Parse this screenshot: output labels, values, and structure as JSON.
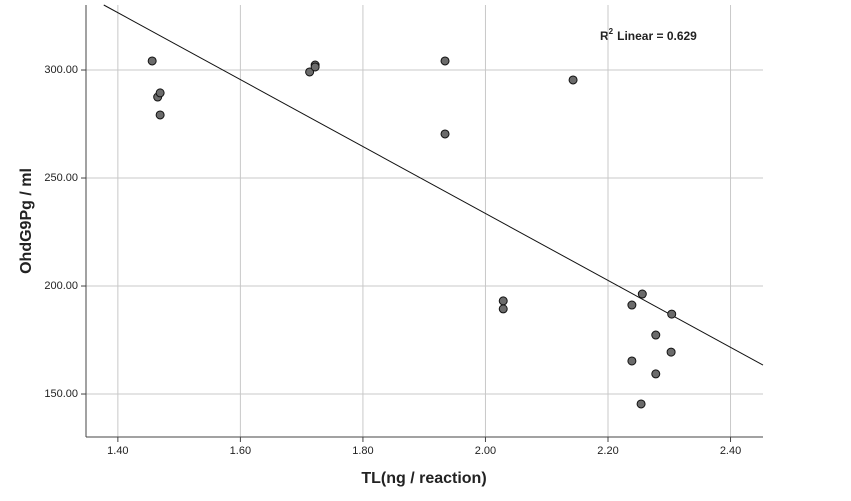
{
  "chart_data": {
    "type": "scatter",
    "x_label": "TL(ng / reaction)",
    "y_label": "OhdG9Pg / ml",
    "annotation": {
      "base": "R",
      "sup": "2",
      "text": "Linear = 0.629"
    },
    "series": [
      {
        "color": "#6b6b6b",
        "x": [
          1.456,
          1.465,
          1.469,
          1.469,
          1.713,
          1.722,
          1.722,
          1.934,
          1.934,
          2.143,
          2.029,
          2.029,
          2.256,
          2.239,
          2.304,
          2.278,
          2.239,
          2.303,
          2.278,
          2.254
        ],
        "values": [
          304.2,
          287.5,
          289.4,
          279.2,
          299.1,
          302.3,
          301.4,
          304.2,
          270.4,
          295.4,
          193.1,
          189.4,
          196.3,
          191.2,
          187.0,
          177.3,
          165.3,
          169.4,
          159.3,
          145.4
        ]
      }
    ],
    "fit_line": {
      "x": [
        1.377,
        2.453
      ],
      "values": [
        330.1,
        163.4
      ]
    },
    "xlim": [
      1.348,
      2.453
    ],
    "ylim": [
      130.1,
      330.1
    ],
    "xticks": [
      {
        "value": 1.4,
        "label": "1.40"
      },
      {
        "value": 1.6,
        "label": "1.60"
      },
      {
        "value": 1.8,
        "label": "1.80"
      },
      {
        "value": 2.0,
        "label": "2.00"
      },
      {
        "value": 2.2,
        "label": "2.20"
      },
      {
        "value": 2.4,
        "label": "2.40"
      }
    ],
    "yticks": [
      {
        "value": 150,
        "label": "150.00"
      },
      {
        "value": 200,
        "label": "200.00"
      },
      {
        "value": 250,
        "label": "250.00"
      },
      {
        "value": 300,
        "label": "300.00"
      }
    ],
    "grid": true
  }
}
